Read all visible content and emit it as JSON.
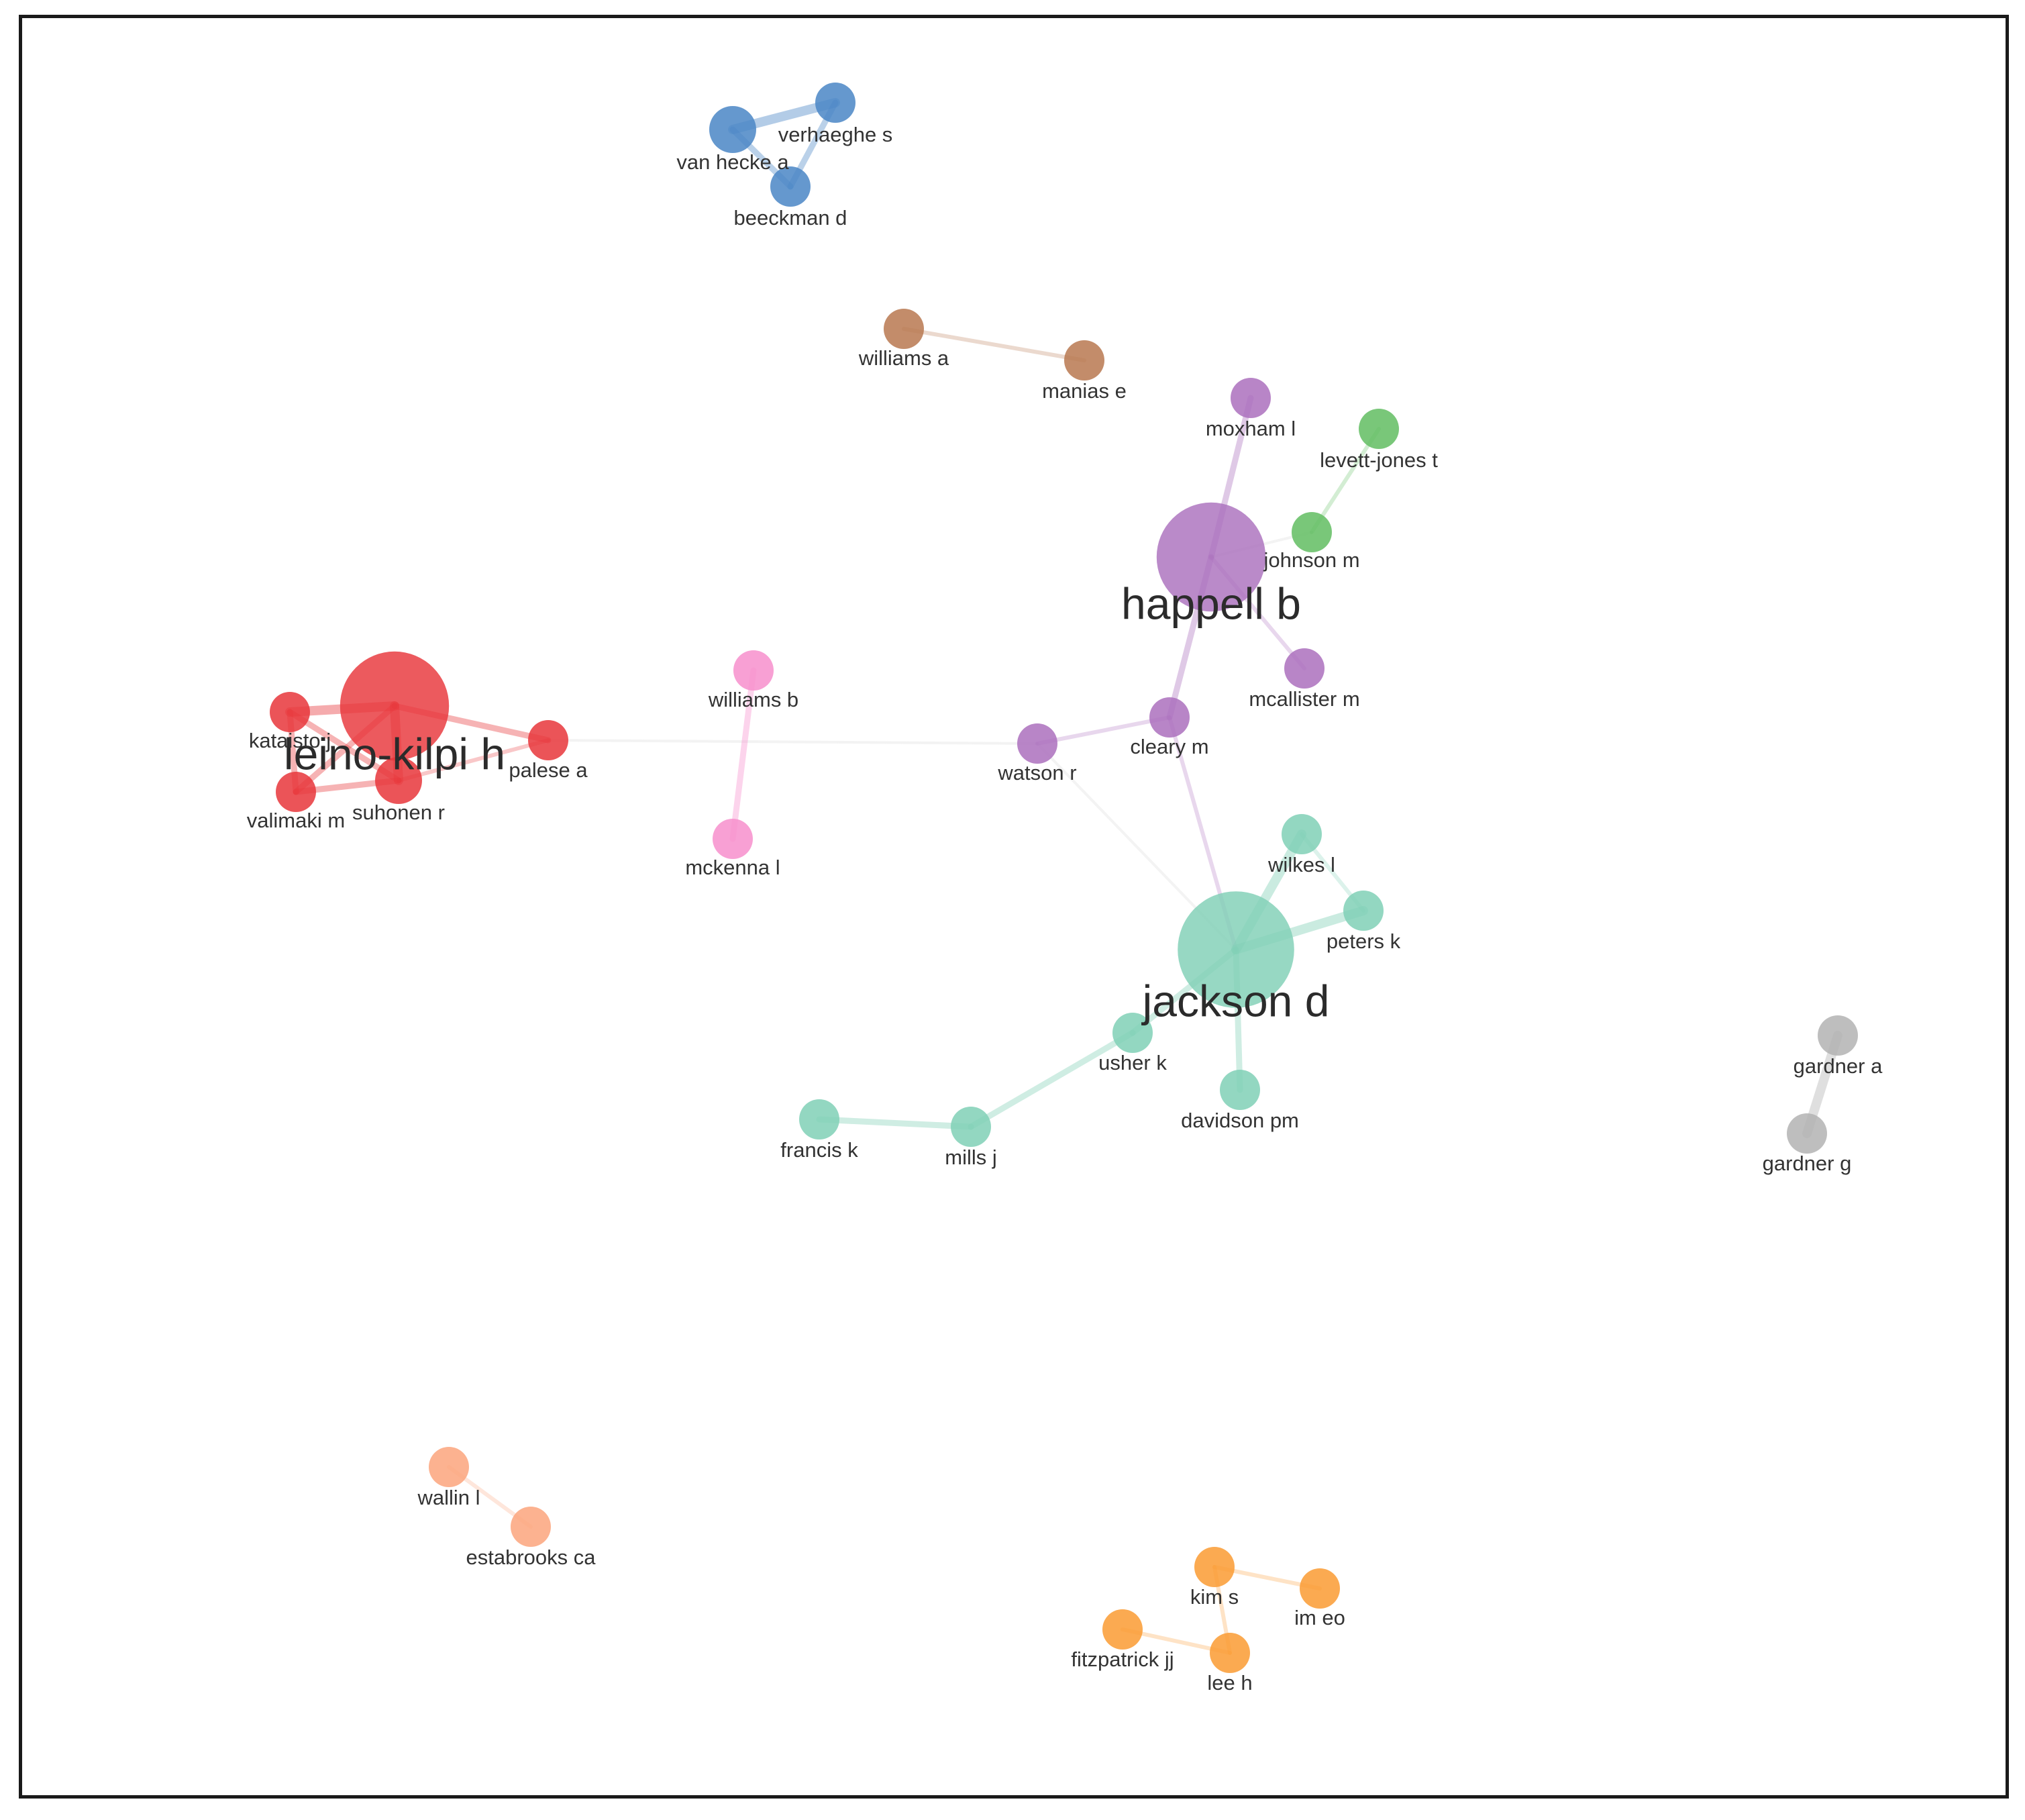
{
  "network": {
    "clusters": [
      {
        "id": "blue",
        "color": "#4a86c5"
      },
      {
        "id": "brown",
        "color": "#b87850"
      },
      {
        "id": "purple",
        "color": "#ab70bd"
      },
      {
        "id": "green",
        "color": "#62bd62"
      },
      {
        "id": "red",
        "color": "#e8363b"
      },
      {
        "id": "pink",
        "color": "#f78fcc"
      },
      {
        "id": "teal",
        "color": "#80d0b6"
      },
      {
        "id": "gray",
        "color": "#b3b3b3"
      },
      {
        "id": "salmon",
        "color": "#fca47c"
      },
      {
        "id": "orange",
        "color": "#fa9b33"
      }
    ],
    "nodes": [
      {
        "id": "van-hecke-a",
        "label": "van hecke a",
        "cluster": "blue",
        "size": "medium"
      },
      {
        "id": "verhaeghe-s",
        "label": "verhaeghe s",
        "cluster": "blue",
        "size": "small"
      },
      {
        "id": "beeckman-d",
        "label": "beeckman d",
        "cluster": "blue",
        "size": "small"
      },
      {
        "id": "williams-a",
        "label": "williams a",
        "cluster": "brown",
        "size": "small"
      },
      {
        "id": "manias-e",
        "label": "manias e",
        "cluster": "brown",
        "size": "small"
      },
      {
        "id": "moxham-l",
        "label": "moxham l",
        "cluster": "purple",
        "size": "small"
      },
      {
        "id": "happell-b",
        "label": "happell b",
        "cluster": "purple",
        "size": "large"
      },
      {
        "id": "mcallister-m",
        "label": "mcallister m",
        "cluster": "purple",
        "size": "small"
      },
      {
        "id": "cleary-m",
        "label": "cleary m",
        "cluster": "purple",
        "size": "small"
      },
      {
        "id": "watson-r",
        "label": "watson r",
        "cluster": "purple",
        "size": "small"
      },
      {
        "id": "levett-jones-t",
        "label": "levett-jones t",
        "cluster": "green",
        "size": "small"
      },
      {
        "id": "johnson-m",
        "label": "johnson m",
        "cluster": "green",
        "size": "small"
      },
      {
        "id": "leino-kilpi-h",
        "label": "leino-kilpi h",
        "cluster": "red",
        "size": "large"
      },
      {
        "id": "kataisto-j",
        "label": "kataisto j",
        "cluster": "red",
        "size": "small"
      },
      {
        "id": "valimaki-m",
        "label": "valimaki m",
        "cluster": "red",
        "size": "small"
      },
      {
        "id": "suhonen-r",
        "label": "suhonen r",
        "cluster": "red",
        "size": "medium"
      },
      {
        "id": "palese-a",
        "label": "palese a",
        "cluster": "red",
        "size": "small"
      },
      {
        "id": "williams-b",
        "label": "williams b",
        "cluster": "pink",
        "size": "small"
      },
      {
        "id": "mckenna-l",
        "label": "mckenna l",
        "cluster": "pink",
        "size": "small"
      },
      {
        "id": "jackson-d",
        "label": "jackson d",
        "cluster": "teal",
        "size": "large"
      },
      {
        "id": "wilkes-l",
        "label": "wilkes l",
        "cluster": "teal",
        "size": "small"
      },
      {
        "id": "peters-k",
        "label": "peters k",
        "cluster": "teal",
        "size": "small"
      },
      {
        "id": "usher-k",
        "label": "usher k",
        "cluster": "teal",
        "size": "small"
      },
      {
        "id": "davidson-pm",
        "label": "davidson pm",
        "cluster": "teal",
        "size": "small"
      },
      {
        "id": "mills-j",
        "label": "mills j",
        "cluster": "teal",
        "size": "small"
      },
      {
        "id": "francis-k",
        "label": "francis k",
        "cluster": "teal",
        "size": "small"
      },
      {
        "id": "gardner-a",
        "label": "gardner a",
        "cluster": "gray",
        "size": "small"
      },
      {
        "id": "gardner-g",
        "label": "gardner g",
        "cluster": "gray",
        "size": "small"
      },
      {
        "id": "wallin-l",
        "label": "wallin l",
        "cluster": "salmon",
        "size": "small"
      },
      {
        "id": "estabrooks-ca",
        "label": "estabrooks ca",
        "cluster": "salmon",
        "size": "small"
      },
      {
        "id": "kim-s",
        "label": "kim s",
        "cluster": "orange",
        "size": "small"
      },
      {
        "id": "im-eo",
        "label": "im eo",
        "cluster": "orange",
        "size": "small"
      },
      {
        "id": "fitzpatrick-jj",
        "label": "fitzpatrick jj",
        "cluster": "orange",
        "size": "small"
      },
      {
        "id": "lee-h",
        "label": "lee h",
        "cluster": "orange",
        "size": "small"
      }
    ],
    "edges": [
      {
        "source": "van-hecke-a",
        "target": "verhaeghe-s",
        "strength": "strong"
      },
      {
        "source": "van-hecke-a",
        "target": "beeckman-d",
        "strength": "medium"
      },
      {
        "source": "verhaeghe-s",
        "target": "beeckman-d",
        "strength": "medium"
      },
      {
        "source": "williams-a",
        "target": "manias-e",
        "strength": "weak"
      },
      {
        "source": "moxham-l",
        "target": "happell-b",
        "strength": "medium"
      },
      {
        "source": "happell-b",
        "target": "cleary-m",
        "strength": "medium"
      },
      {
        "source": "happell-b",
        "target": "mcallister-m",
        "strength": "weak"
      },
      {
        "source": "happell-b",
        "target": "johnson-m",
        "strength": "faint"
      },
      {
        "source": "levett-jones-t",
        "target": "johnson-m",
        "strength": "weak"
      },
      {
        "source": "cleary-m",
        "target": "watson-r",
        "strength": "weak"
      },
      {
        "source": "cleary-m",
        "target": "jackson-d",
        "strength": "weak"
      },
      {
        "source": "watson-r",
        "target": "jackson-d",
        "strength": "faint"
      },
      {
        "source": "watson-r",
        "target": "palese-a",
        "strength": "faint"
      },
      {
        "source": "leino-kilpi-h",
        "target": "kataisto-j",
        "strength": "strong"
      },
      {
        "source": "leino-kilpi-h",
        "target": "valimaki-m",
        "strength": "medium"
      },
      {
        "source": "leino-kilpi-h",
        "target": "suhonen-r",
        "strength": "strong"
      },
      {
        "source": "leino-kilpi-h",
        "target": "palese-a",
        "strength": "medium"
      },
      {
        "source": "kataisto-j",
        "target": "valimaki-m",
        "strength": "medium"
      },
      {
        "source": "kataisto-j",
        "target": "suhonen-r",
        "strength": "medium"
      },
      {
        "source": "valimaki-m",
        "target": "suhonen-r",
        "strength": "medium"
      },
      {
        "source": "suhonen-r",
        "target": "palese-a",
        "strength": "weak"
      },
      {
        "source": "williams-b",
        "target": "mckenna-l",
        "strength": "medium"
      },
      {
        "source": "jackson-d",
        "target": "wilkes-l",
        "strength": "strong"
      },
      {
        "source": "jackson-d",
        "target": "peters-k",
        "strength": "strong"
      },
      {
        "source": "wilkes-l",
        "target": "peters-k",
        "strength": "weak"
      },
      {
        "source": "jackson-d",
        "target": "usher-k",
        "strength": "medium"
      },
      {
        "source": "jackson-d",
        "target": "davidson-pm",
        "strength": "medium"
      },
      {
        "source": "usher-k",
        "target": "mills-j",
        "strength": "medium"
      },
      {
        "source": "mills-j",
        "target": "francis-k",
        "strength": "medium"
      },
      {
        "source": "gardner-a",
        "target": "gardner-g",
        "strength": "strong"
      },
      {
        "source": "wallin-l",
        "target": "estabrooks-ca",
        "strength": "weak"
      },
      {
        "source": "kim-s",
        "target": "im-eo",
        "strength": "weak"
      },
      {
        "source": "kim-s",
        "target": "lee-h",
        "strength": "weak"
      },
      {
        "source": "fitzpatrick-jj",
        "target": "lee-h",
        "strength": "weak"
      }
    ]
  }
}
